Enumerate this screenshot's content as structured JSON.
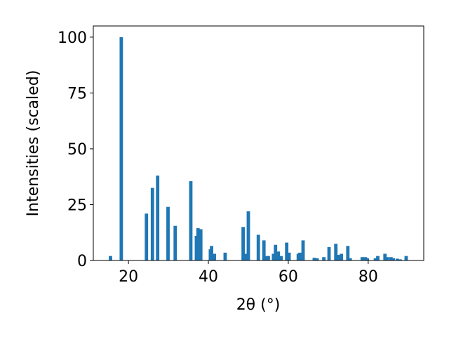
{
  "chart_data": {
    "type": "bar",
    "x": [
      15.5,
      18.2,
      24.5,
      26.0,
      27.3,
      29.9,
      31.7,
      35.6,
      37.0,
      37.4,
      38.1,
      40.5,
      40.8,
      41.5,
      44.2,
      48.7,
      49.5,
      50.0,
      52.5,
      53.9,
      54.5,
      55.0,
      56.3,
      56.8,
      57.5,
      58.2,
      59.6,
      60.2,
      62.5,
      62.9,
      63.7,
      66.5,
      67.2,
      68.9,
      70.2,
      71.9,
      72.6,
      73.3,
      74.9,
      75.5,
      78.5,
      79.3,
      79.8,
      81.8,
      82.4,
      84.2,
      84.8,
      85.7,
      86.3,
      87.3,
      88.0,
      89.5
    ],
    "values": [
      2,
      100,
      21,
      32.5,
      38,
      24,
      15.5,
      35.5,
      11,
      14.5,
      14,
      5,
      6.5,
      3,
      3.5,
      15,
      3,
      22,
      11.5,
      9,
      2,
      2,
      3,
      7,
      4,
      2,
      8,
      3.5,
      3,
      3.5,
      9,
      1.2,
      1,
      1.5,
      6,
      7.5,
      2.5,
      3,
      6.5,
      1,
      1.5,
      1.5,
      1,
      1,
      2,
      3,
      1.5,
      1.5,
      1,
      0.8,
      0.5,
      2
    ],
    "color": "#1f77b4",
    "xlabel": "2θ (°)",
    "ylabel": "Intensities (scaled)",
    "xlim": [
      11.2,
      93.9
    ],
    "xticks": [
      20,
      40,
      60,
      80
    ],
    "ylim": [
      0,
      105
    ],
    "yticks": [
      0,
      25,
      50,
      75,
      100
    ]
  }
}
